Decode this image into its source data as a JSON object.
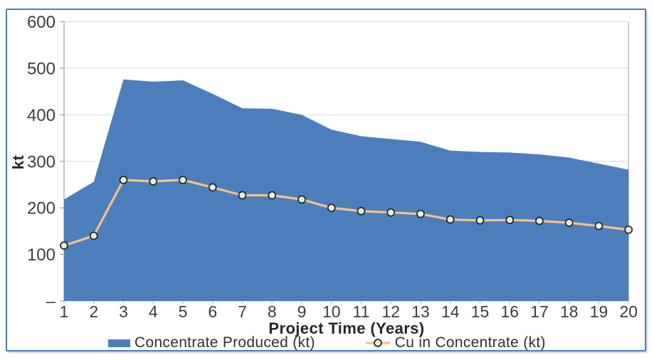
{
  "chart_data": {
    "type": "area",
    "title": "",
    "xlabel": "Project Time (Years)",
    "ylabel": "kt",
    "x": [
      1,
      2,
      3,
      4,
      5,
      6,
      7,
      8,
      9,
      10,
      11,
      12,
      13,
      14,
      15,
      16,
      17,
      18,
      19,
      20
    ],
    "ylim": [
      0,
      600
    ],
    "y_tick_values": [
      0,
      100,
      200,
      300,
      400,
      500,
      600
    ],
    "y_tick_labels": [
      "–",
      "100",
      "200",
      "300",
      "400",
      "500",
      "600"
    ],
    "grid": true,
    "legend_position": "bottom",
    "series": [
      {
        "name": "Concentrate Produced (kt)",
        "type": "area",
        "color": "#4d7ebc",
        "values": [
          218,
          256,
          476,
          471,
          474,
          445,
          414,
          413,
          400,
          368,
          354,
          348,
          342,
          323,
          320,
          319,
          315,
          308,
          295,
          282
        ]
      },
      {
        "name": "Cu in Concentrate (kt)",
        "type": "line",
        "color": "#f9c089",
        "marker_fill": "#e7efdc",
        "marker_stroke": "#212121",
        "values": [
          119,
          140,
          260,
          257,
          260,
          244,
          227,
          227,
          218,
          200,
          193,
          190,
          187,
          175,
          173,
          174,
          172,
          168,
          161,
          153
        ]
      }
    ],
    "axis_colors": {
      "gridline": "#d9d9d9",
      "y_axis": "#a9a9a9",
      "x_axis": "#c2c2c2",
      "plot_right_border": "#b8b8b8",
      "tick_text": "#3d3d3d"
    },
    "frame_border_color": "#4a7ebb"
  }
}
